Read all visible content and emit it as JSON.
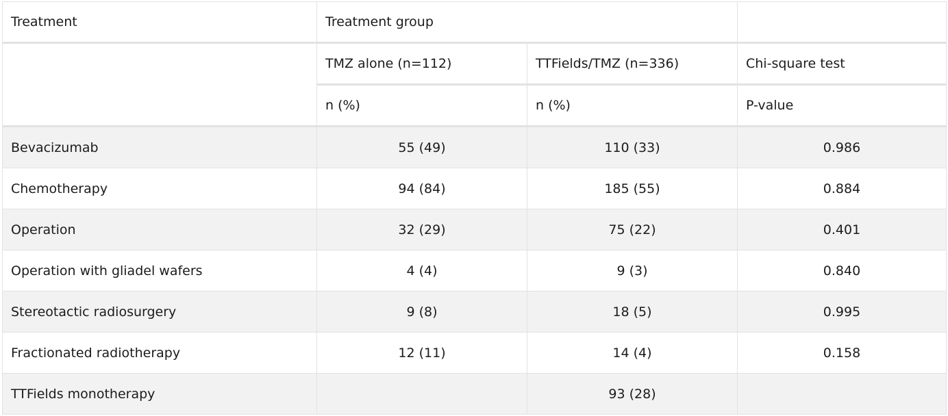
{
  "header": {
    "treatment": "Treatment",
    "treatment_group": "Treatment group",
    "tmz_alone": "TMZ alone (n=112)",
    "ttfields_tmz": "TTFields/TMZ (n=336)",
    "chi_square": "Chi-square test",
    "n_pct_1": "n (%)",
    "n_pct_2": "n (%)",
    "p_value": "P-value"
  },
  "rows": [
    {
      "label": "Bevacizumab",
      "tmz": "55 (49)",
      "ttf": "110 (33)",
      "p": "0.986"
    },
    {
      "label": "Chemotherapy",
      "tmz": "94 (84)",
      "ttf": "185 (55)",
      "p": "0.884"
    },
    {
      "label": "Operation",
      "tmz": "32 (29)",
      "ttf": "75 (22)",
      "p": "0.401"
    },
    {
      "label": "Operation with gliadel wafers",
      "tmz": "4 (4)",
      "ttf": "9 (3)",
      "p": "0.840"
    },
    {
      "label": "Stereotactic radiosurgery",
      "tmz": "9 (8)",
      "ttf": "18 (5)",
      "p": "0.995"
    },
    {
      "label": "Fractionated radiotherapy",
      "tmz": "12 (11)",
      "ttf": "14 (4)",
      "p": "0.158"
    },
    {
      "label": "TTFields monotherapy",
      "tmz": "",
      "ttf": "93 (28)",
      "p": ""
    }
  ]
}
